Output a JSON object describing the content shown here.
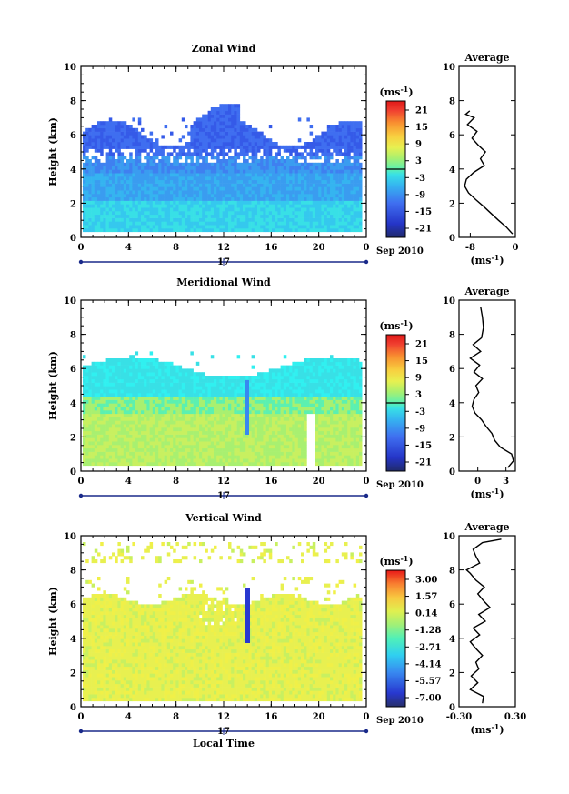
{
  "chart_data": [
    {
      "type": "heatmap",
      "title": "Zonal Wind",
      "ylabel": "Height (km)",
      "xlabel": "",
      "x_ticks": [
        "0",
        "4",
        "8",
        "12",
        "16",
        "20",
        "0"
      ],
      "y_ticks": [
        "0",
        "2",
        "4",
        "6",
        "8",
        "10"
      ],
      "xlim": [
        0,
        24
      ],
      "ylim": [
        0,
        10
      ],
      "date_tick": "17",
      "date_label": "Sep 2010",
      "colorbar": {
        "unit": "(ms",
        "unit_exp": "-1",
        "unit_close": ")",
        "ticks": [
          "21",
          "15",
          "9",
          "3",
          "-3",
          "-9",
          "-15",
          "-21"
        ]
      },
      "average": {
        "title": "Average",
        "y_ticks": [
          "0",
          "2",
          "4",
          "6",
          "8",
          "10"
        ],
        "x_ticks": [
          "-8",
          "0"
        ],
        "xlim": [
          -10,
          0
        ],
        "unit": "(ms",
        "unit_exp": "-1",
        "unit_close": ")",
        "profile": {
          "height": [
            0.2,
            0.6,
            1.0,
            1.4,
            1.8,
            2.2,
            2.6,
            3.0,
            3.4,
            3.8,
            4.2,
            4.6,
            5.0,
            5.4,
            5.8,
            6.2,
            6.6,
            7.0,
            7.2,
            7.4
          ],
          "value": [
            -0.5,
            -1.6,
            -3.0,
            -4.3,
            -5.6,
            -7.0,
            -8.3,
            -9.0,
            -8.7,
            -7.4,
            -5.5,
            -6.2,
            -5.3,
            -6.6,
            -7.7,
            -6.8,
            -8.5,
            -7.3,
            -8.8,
            -8.1
          ]
        }
      }
    },
    {
      "type": "heatmap",
      "title": "Meridional Wind",
      "ylabel": "Height (km)",
      "xlabel": "",
      "x_ticks": [
        "0",
        "4",
        "8",
        "12",
        "16",
        "20",
        "0"
      ],
      "y_ticks": [
        "0",
        "2",
        "4",
        "6",
        "8",
        "10"
      ],
      "xlim": [
        0,
        24
      ],
      "ylim": [
        0,
        10
      ],
      "date_tick": "17",
      "date_label": "Sep 2010",
      "colorbar": {
        "unit": "(ms",
        "unit_exp": "-1",
        "unit_close": ")",
        "ticks": [
          "21",
          "15",
          "9",
          "3",
          "-3",
          "-9",
          "-15",
          "-21"
        ]
      },
      "average": {
        "title": "Average",
        "y_ticks": [
          "0",
          "2",
          "4",
          "6",
          "8",
          "10"
        ],
        "x_ticks": [
          "0",
          "3"
        ],
        "xlim": [
          -2,
          4
        ],
        "unit": "(ms",
        "unit_exp": "-1",
        "unit_close": ")",
        "profile": {
          "height": [
            0.2,
            0.6,
            1.0,
            1.4,
            1.8,
            2.2,
            2.6,
            3.0,
            3.4,
            3.8,
            4.2,
            4.6,
            5.0,
            5.4,
            5.8,
            6.2,
            6.6,
            7.0,
            7.4,
            7.8,
            8.4,
            9.0,
            9.6
          ],
          "value": [
            3.2,
            3.8,
            3.6,
            2.4,
            1.8,
            1.5,
            0.9,
            0.4,
            -0.3,
            -0.6,
            -0.4,
            0.1,
            -0.2,
            0.5,
            -0.4,
            0.2,
            -0.8,
            0.3,
            -0.5,
            0.4,
            0.6,
            0.5,
            0.3
          ]
        }
      }
    },
    {
      "type": "heatmap",
      "title": "Vertical Wind",
      "ylabel": "Height (km)",
      "xlabel": "Local Time",
      "x_ticks": [
        "0",
        "4",
        "8",
        "12",
        "16",
        "20",
        "0"
      ],
      "y_ticks": [
        "0",
        "2",
        "4",
        "6",
        "8",
        "10"
      ],
      "xlim": [
        0,
        24
      ],
      "ylim": [
        0,
        10
      ],
      "date_tick": "17",
      "date_label": "Sep 2010",
      "colorbar": {
        "unit": "(ms",
        "unit_exp": "-1",
        "unit_close": ")",
        "ticks": [
          "3.00",
          "1.57",
          "0.14",
          "-1.28",
          "-2.71",
          "-4.14",
          "-5.57",
          "-7.00"
        ]
      },
      "average": {
        "title": "Average",
        "y_ticks": [
          "0",
          "2",
          "4",
          "6",
          "8",
          "10"
        ],
        "x_ticks": [
          "-0.30",
          "0.30"
        ],
        "xlim": [
          -0.3,
          0.3
        ],
        "unit": "(ms",
        "unit_exp": "-1",
        "unit_close": ")",
        "profile": {
          "height": [
            0.2,
            0.6,
            1.0,
            1.4,
            1.8,
            2.2,
            2.6,
            3.0,
            3.4,
            3.8,
            4.2,
            4.6,
            5.0,
            5.4,
            5.8,
            6.2,
            6.6,
            7.0,
            7.4,
            7.8,
            8.0,
            8.4,
            8.8,
            9.2,
            9.6,
            9.8
          ],
          "value": [
            -0.05,
            -0.04,
            -0.18,
            -0.1,
            -0.17,
            -0.09,
            -0.12,
            -0.05,
            -0.12,
            -0.18,
            -0.08,
            -0.15,
            -0.02,
            -0.09,
            0.03,
            -0.04,
            -0.1,
            -0.03,
            -0.12,
            -0.18,
            -0.22,
            -0.08,
            -0.12,
            -0.15,
            -0.05,
            0.15
          ]
        }
      }
    }
  ]
}
